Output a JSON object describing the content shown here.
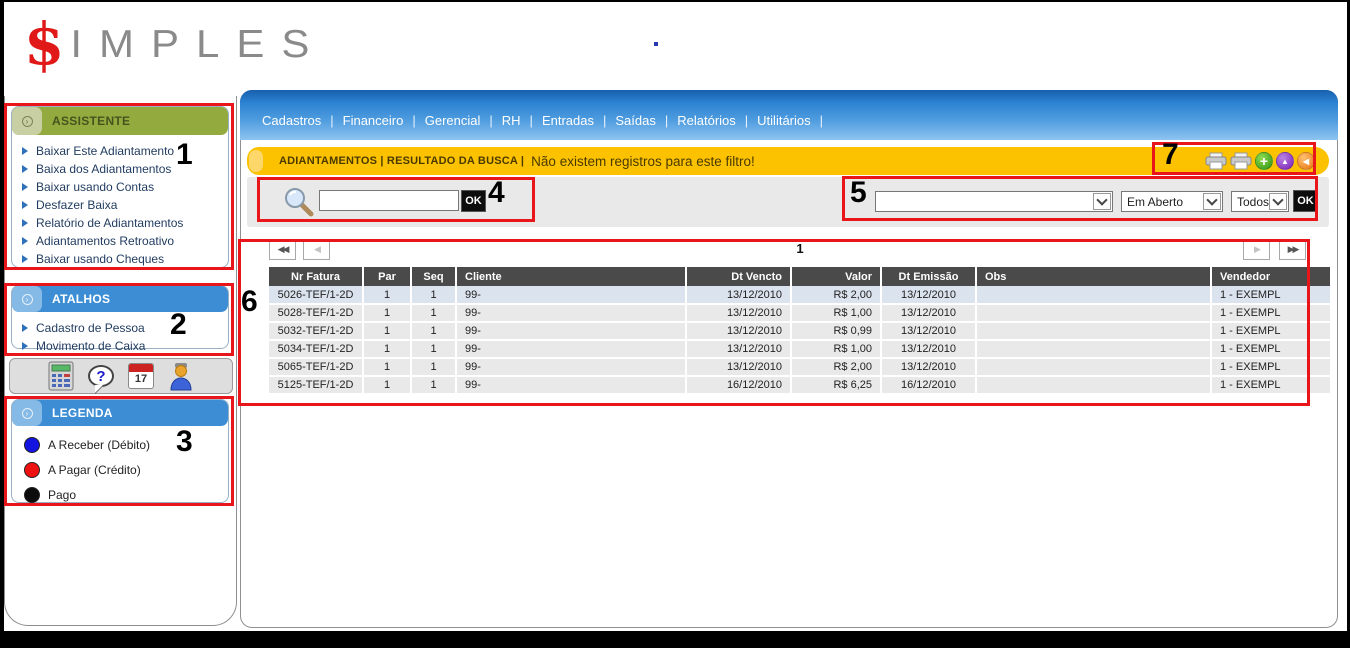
{
  "logo": {
    "dollar": "$",
    "name": "IMPLES"
  },
  "nav": {
    "separator": "|",
    "items": [
      "Cadastros",
      "Financeiro",
      "Gerencial",
      "RH",
      "Entradas",
      "Saídas",
      "Relatórios",
      "Utilitários"
    ]
  },
  "status_bar": {
    "breadcrumb": "ADIANTAMENTOS | RESULTADO DA BUSCA |",
    "message": "Não existem registros para este filtro!"
  },
  "action_icons": {
    "plus": "+",
    "up": "▲",
    "back": "◀"
  },
  "search": {
    "value": "",
    "ok": "OK"
  },
  "filters": {
    "type_value": "",
    "status_value": "Em Aberto",
    "scope_value": "Todos",
    "ok": "OK"
  },
  "sidebar": {
    "assistente": {
      "title": "ASSISTENTE",
      "items": [
        "Baixar Este Adiantamento",
        "Baixa dos Adiantamentos",
        "Baixar usando Contas",
        "Desfazer Baixa",
        "Relatório de Adiantamentos",
        "Adiantamentos Retroativo",
        "Baixar usando Cheques"
      ]
    },
    "atalhos": {
      "title": "ATALHOS",
      "items": [
        "Cadastro de Pessoa",
        "Movimento de Caixa"
      ]
    },
    "toolbar": {
      "calendar_day": "17"
    },
    "legenda": {
      "title": "LEGENDA",
      "items": [
        {
          "color": "#1414e0",
          "label": "A Receber (Débito)"
        },
        {
          "color": "#ee1111",
          "label": "A Pagar (Crédito)"
        },
        {
          "color": "#0c0c0c",
          "label": "Pago"
        }
      ]
    }
  },
  "pager": {
    "page": "1",
    "first": "◀◀",
    "prev": "◀",
    "next": "▶",
    "last": "▶▶"
  },
  "table": {
    "headers": [
      "Nr Fatura",
      "Par",
      "Seq",
      "Cliente",
      "Dt Vencto",
      "Valor",
      "Dt Emissão",
      "Obs",
      "Vendedor"
    ],
    "rows": [
      [
        "5026-TEF/1-2D",
        "1",
        "1",
        "99-",
        "13/12/2010",
        "R$ 2,00",
        "13/12/2010",
        "",
        "1 - EXEMPL"
      ],
      [
        "5028-TEF/1-2D",
        "1",
        "1",
        "99-",
        "13/12/2010",
        "R$ 1,00",
        "13/12/2010",
        "",
        "1 - EXEMPL"
      ],
      [
        "5032-TEF/1-2D",
        "1",
        "1",
        "99-",
        "13/12/2010",
        "R$ 0,99",
        "13/12/2010",
        "",
        "1 - EXEMPL"
      ],
      [
        "5034-TEF/1-2D",
        "1",
        "1",
        "99-",
        "13/12/2010",
        "R$ 1,00",
        "13/12/2010",
        "",
        "1 - EXEMPL"
      ],
      [
        "5065-TEF/1-2D",
        "1",
        "1",
        "99-",
        "13/12/2010",
        "R$ 2,00",
        "13/12/2010",
        "",
        "1 - EXEMPL"
      ],
      [
        "5125-TEF/1-2D",
        "1",
        "1",
        "99-",
        "16/12/2010",
        "R$ 6,25",
        "16/12/2010",
        "",
        "1 - EXEMPL"
      ]
    ]
  },
  "annotations": {
    "labels": [
      "1",
      "2",
      "3",
      "4",
      "5",
      "6",
      "7"
    ]
  },
  "colors": {
    "accent_green": "#93ab3e",
    "accent_blue": "#3c8dd4",
    "status_yellow": "#fcc200",
    "annotation_red": "#e8151a",
    "table_header_bg": "#4a4a4a"
  }
}
